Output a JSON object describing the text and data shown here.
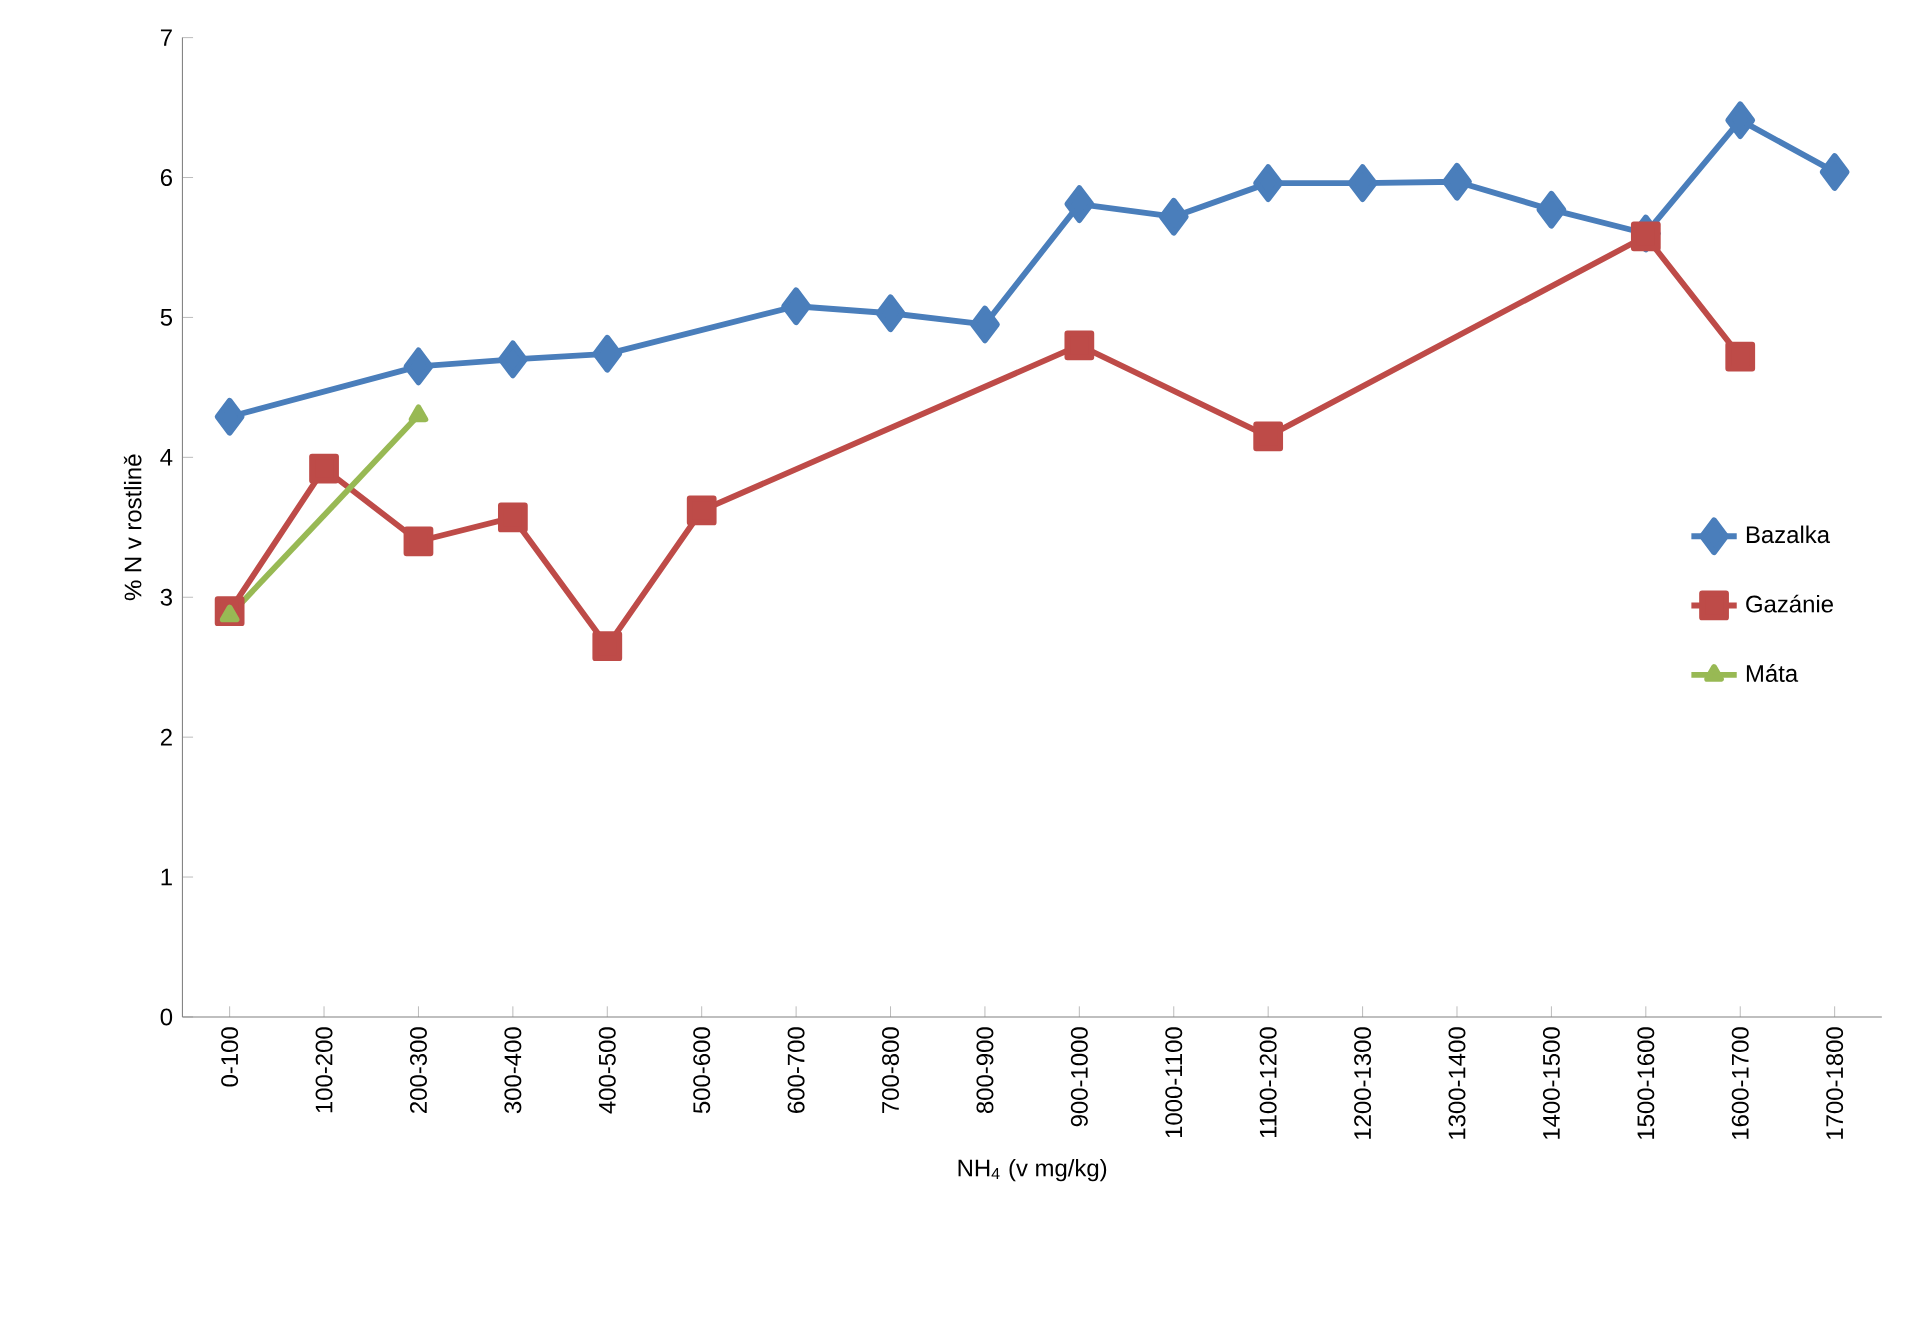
{
  "chart_data": {
    "type": "line",
    "xlabel": "NH$_{4}$ (v mg/kg)",
    "ylabel": "% N v rostlině",
    "categories": [
      "0-100",
      "100-200",
      "200-300",
      "300-400",
      "400-500",
      "500-600",
      "600-700",
      "700-800",
      "800-900",
      "900-1000",
      "1000-1100",
      "1100-1200",
      "1200-1300",
      "1300-1400",
      "1400-1500",
      "1500-1600",
      "1600-1700",
      "1700-1800"
    ],
    "series": [
      {
        "name": "Bazalka",
        "color": "#4a7ebb",
        "marker": "diamond",
        "values": [
          4.29,
          null,
          4.65,
          4.7,
          4.74,
          null,
          5.08,
          5.03,
          4.95,
          5.81,
          5.72,
          5.96,
          5.96,
          5.97,
          5.77,
          5.6,
          6.41,
          6.04
        ]
      },
      {
        "name": "Gazánie",
        "color": "#be4b48",
        "marker": "square",
        "values": [
          2.9,
          3.92,
          3.4,
          3.57,
          2.65,
          3.62,
          null,
          null,
          null,
          4.8,
          null,
          4.15,
          null,
          null,
          null,
          5.58,
          4.72,
          null
        ]
      },
      {
        "name": "Máta",
        "color": "#98b954",
        "marker": "triangle",
        "values": [
          2.87,
          null,
          4.3,
          null,
          null,
          null,
          null,
          null,
          null,
          null,
          null,
          null,
          null,
          null,
          null,
          null,
          null,
          null
        ]
      }
    ],
    "ylim": [
      0,
      7
    ],
    "yticks": [
      0,
      1,
      2,
      3,
      4,
      5,
      6,
      7
    ],
    "grid": false,
    "legend": "right",
    "line_style": "solid"
  }
}
